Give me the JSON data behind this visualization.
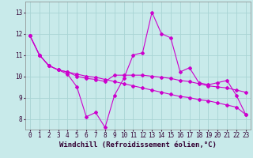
{
  "xlabel": "Windchill (Refroidissement éolien,°C)",
  "bg_color": "#c8eaea",
  "grid_color": "#a8d4d4",
  "line_color": "#cc00cc",
  "xlim": [
    -0.5,
    23.5
  ],
  "ylim": [
    7.5,
    13.5
  ],
  "yticks": [
    8,
    9,
    10,
    11,
    12,
    13
  ],
  "xticks": [
    0,
    1,
    2,
    3,
    4,
    5,
    6,
    7,
    8,
    9,
    10,
    11,
    12,
    13,
    14,
    15,
    16,
    17,
    18,
    19,
    20,
    21,
    22,
    23
  ],
  "line1": [
    11.9,
    11.0,
    10.5,
    10.3,
    10.1,
    9.5,
    8.1,
    8.3,
    7.6,
    9.1,
    9.9,
    11.0,
    11.1,
    13.0,
    12.0,
    11.8,
    10.2,
    10.4,
    9.7,
    9.6,
    9.7,
    9.8,
    9.1,
    8.2
  ],
  "line2": [
    11.9,
    11.0,
    10.5,
    10.3,
    10.2,
    10.0,
    9.9,
    9.85,
    9.75,
    10.05,
    10.05,
    10.05,
    10.05,
    10.0,
    9.95,
    9.9,
    9.8,
    9.75,
    9.65,
    9.55,
    9.5,
    9.45,
    9.35,
    9.25
  ],
  "line3": [
    11.9,
    11.0,
    10.5,
    10.3,
    10.2,
    10.1,
    10.0,
    9.95,
    9.85,
    9.75,
    9.65,
    9.55,
    9.45,
    9.35,
    9.25,
    9.15,
    9.05,
    9.0,
    8.9,
    8.85,
    8.75,
    8.65,
    8.55,
    8.2
  ],
  "tick_fontsize": 5.5,
  "xlabel_fontsize": 6.5
}
